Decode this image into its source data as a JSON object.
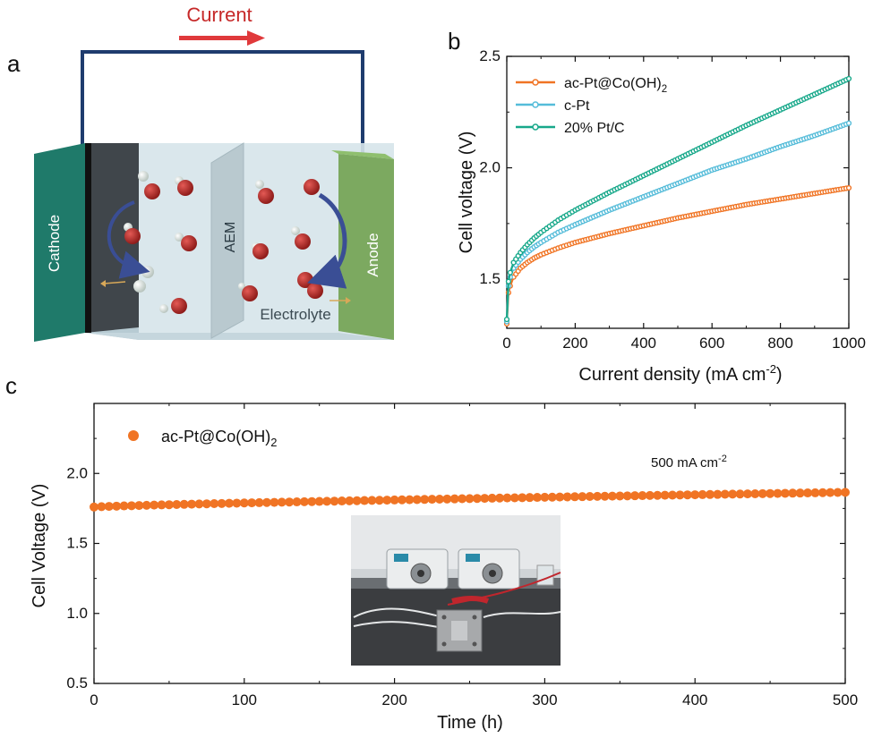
{
  "panel_a": {
    "letter": "a",
    "current_label": "Current",
    "cathode_label": "Cathode",
    "anode_label": "Anode",
    "membrane_label": "AEM",
    "electrolyte_label": "Electrolyte",
    "colors": {
      "wire": "#1f3c6e",
      "arrow": "#e0393b",
      "cathode": "#1f7a6a",
      "anode": "#77a558",
      "oxygen": "#b52b27",
      "hydrogen": "#e8eeea",
      "cycle_arrow": "#3a4e95"
    }
  },
  "panel_b": {
    "letter": "b"
  },
  "panel_c": {
    "letter": "c",
    "annotation_value": "500 mA cm",
    "annotation_exponent": "-2",
    "inset_photo": "electrolyzer test setup with two peristaltic pumps"
  },
  "chart_data": [
    {
      "id": "b",
      "type": "line",
      "xlabel": "Current density (mA cm",
      "xlabel_exponent": "-2",
      "xlabel_close": ")",
      "ylabel": "Cell voltage (V)",
      "xlim": [
        0,
        1000
      ],
      "ylim": [
        1.28,
        2.5
      ],
      "xticks": [
        0,
        200,
        400,
        600,
        800,
        1000
      ],
      "yticks": [
        1.5,
        2.0,
        2.5
      ],
      "grid": false,
      "legend_position": "top-left",
      "x": [
        0,
        5,
        10,
        20,
        40,
        60,
        80,
        100,
        150,
        200,
        300,
        400,
        500,
        600,
        700,
        800,
        900,
        1000
      ],
      "series": [
        {
          "name": "ac-Pt@Co(OH)",
          "name_subscript": "2",
          "color": "#f07424",
          "values": [
            1.3,
            1.44,
            1.47,
            1.51,
            1.55,
            1.575,
            1.595,
            1.61,
            1.64,
            1.665,
            1.705,
            1.74,
            1.775,
            1.805,
            1.835,
            1.86,
            1.885,
            1.91
          ]
        },
        {
          "name": "c-Pt",
          "color": "#55bcd9",
          "values": [
            1.31,
            1.47,
            1.51,
            1.55,
            1.59,
            1.62,
            1.645,
            1.665,
            1.71,
            1.745,
            1.81,
            1.87,
            1.93,
            1.99,
            2.04,
            2.095,
            2.145,
            2.2
          ]
        },
        {
          "name": "20% Pt/C",
          "color": "#17a88a",
          "values": [
            1.32,
            1.49,
            1.53,
            1.575,
            1.62,
            1.655,
            1.685,
            1.71,
            1.765,
            1.81,
            1.89,
            1.965,
            2.04,
            2.115,
            2.19,
            2.26,
            2.33,
            2.4
          ]
        }
      ]
    },
    {
      "id": "c",
      "type": "scatter",
      "xlabel": "Time (h)",
      "ylabel": "Cell Voltage (V)",
      "xlim": [
        0,
        500
      ],
      "ylim": [
        0.5,
        2.5
      ],
      "xticks": [
        0,
        100,
        200,
        300,
        400,
        500
      ],
      "yticks": [
        0.5,
        1.0,
        1.5,
        2.0
      ],
      "grid": false,
      "legend_position": "top-left",
      "series": [
        {
          "name": "ac-Pt@Co(OH)",
          "name_subscript": "2",
          "color": "#f07424",
          "x_start": 0,
          "x_end": 500,
          "x_step": 5,
          "y_start": 1.76,
          "y_end": 1.865
        }
      ]
    }
  ]
}
